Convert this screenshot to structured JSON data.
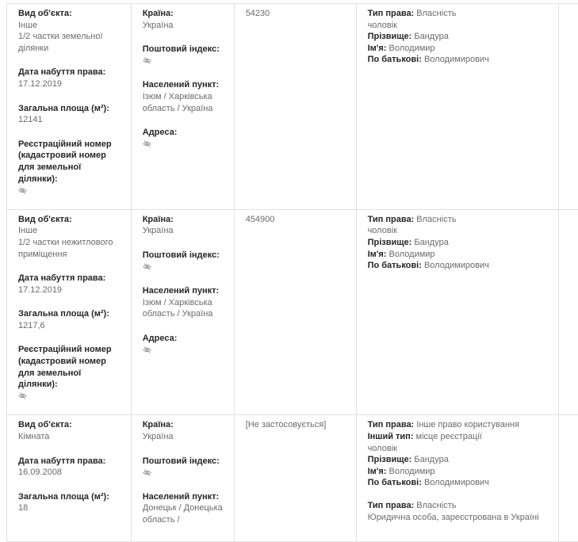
{
  "labels": {
    "object_type": "Вид об'єкта:",
    "acquire_date": "Дата набуття права:",
    "area": "Загальна площа (м²):",
    "reg_number": "Реєстраційний номер (кадастровий номер для земельної ділянки):",
    "country": "Країна:",
    "postal_index": "Поштовий індекс:",
    "locality": "Населений пункт:",
    "address": "Адреса:",
    "right_type": "Тип права:",
    "other_type": "Інший тип:",
    "surname": "Прізвище:",
    "name": "Ім'я:",
    "patronymic": "По батькові:"
  },
  "rows": [
    {
      "object_type": "Інше",
      "object_desc": "1/2 частки земельної ділянки",
      "acquire_date": "17.12.2019",
      "area": "12141",
      "country": "Україна",
      "locality": "Ізюм / Харківська область / Україна",
      "value": "54230",
      "right_type": "Власність",
      "relation": "чоловік",
      "surname": "Бандура",
      "name": "Володимир",
      "patronymic": "Володимирович"
    },
    {
      "object_type": "Інше",
      "object_desc": "1/2 частки нежитлового приміщення",
      "acquire_date": "17.12.2019",
      "area": "1217,6",
      "country": "Україна",
      "locality": "Ізюм / Харківська область / Україна",
      "value": "454900",
      "right_type": "Власність",
      "relation": "чоловік",
      "surname": "Бандура",
      "name": "Володимир",
      "patronymic": "Володимирович"
    },
    {
      "object_type": "Кімната",
      "acquire_date": "16.09.2008",
      "area": "18",
      "country": "Україна",
      "locality": "Донецьк / Донецька область /",
      "value": "[Не застосовується]",
      "right_type": "Інше право користування",
      "other_type": "місце реєстрації",
      "relation": "чоловік",
      "surname": "Бандура",
      "name": "Володимир",
      "patronymic": "Володимирович",
      "right_type_2": "Власність",
      "owner_2": "Юридична особа, зареєстрована в Україні"
    }
  ],
  "icons": {
    "hidden": "eye-slash-icon"
  }
}
